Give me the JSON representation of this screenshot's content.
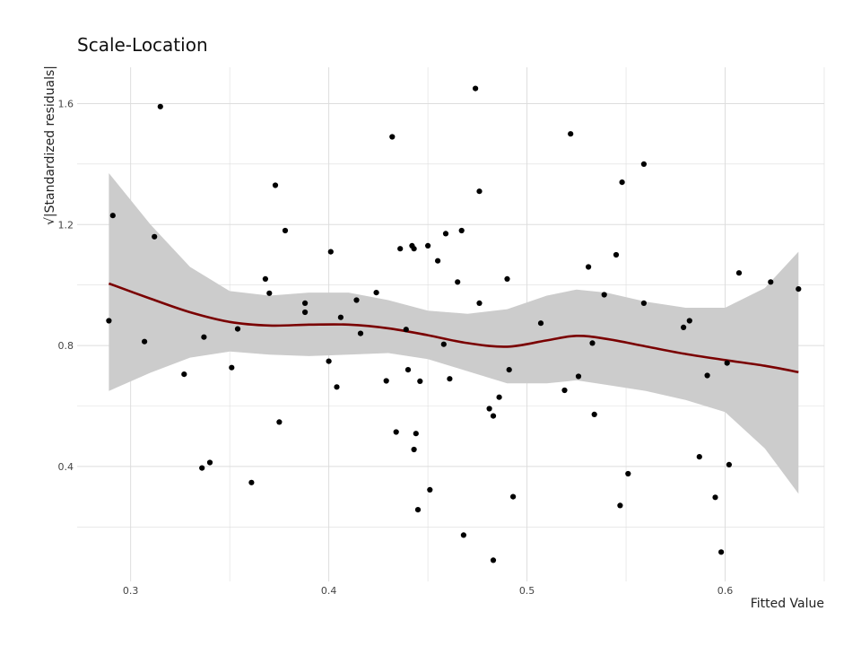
{
  "chart_data": {
    "type": "scatter",
    "title": "Scale-Location",
    "xlabel": "Fitted Value",
    "ylabel": "√|Standardized residuals|",
    "xlim": [
      0.273,
      0.65
    ],
    "ylim": [
      0.02,
      1.72
    ],
    "x_ticks": [
      0.3,
      0.4,
      0.5,
      0.6
    ],
    "x_tick_labels": [
      "0.3",
      "0.4",
      "0.5",
      "0.6"
    ],
    "y_ticks": [
      0.4,
      0.8,
      1.2,
      1.6
    ],
    "y_tick_labels": [
      "0.4",
      "0.8",
      "1.2",
      "1.6"
    ],
    "grid": true,
    "legend": "none",
    "colors": {
      "points": "#000000",
      "smooth_line": "#7a0000",
      "confidence_band": "#cccccc",
      "grid": "#dddddd"
    },
    "points": [
      [
        0.289,
        0.882
      ],
      [
        0.291,
        1.23
      ],
      [
        0.307,
        0.813
      ],
      [
        0.312,
        1.16
      ],
      [
        0.315,
        1.59
      ],
      [
        0.327,
        0.705
      ],
      [
        0.336,
        0.395
      ],
      [
        0.337,
        0.828
      ],
      [
        0.34,
        0.413
      ],
      [
        0.351,
        0.727
      ],
      [
        0.354,
        0.855
      ],
      [
        0.361,
        0.347
      ],
      [
        0.368,
        1.02
      ],
      [
        0.37,
        0.973
      ],
      [
        0.373,
        1.33
      ],
      [
        0.375,
        0.547
      ],
      [
        0.378,
        1.18
      ],
      [
        0.388,
        0.94
      ],
      [
        0.388,
        0.91
      ],
      [
        0.4,
        0.748
      ],
      [
        0.401,
        1.11
      ],
      [
        0.404,
        0.663
      ],
      [
        0.406,
        0.893
      ],
      [
        0.414,
        0.95
      ],
      [
        0.416,
        0.84
      ],
      [
        0.424,
        0.975
      ],
      [
        0.429,
        0.683
      ],
      [
        0.432,
        1.49
      ],
      [
        0.434,
        0.514
      ],
      [
        0.436,
        1.12
      ],
      [
        0.439,
        0.853
      ],
      [
        0.44,
        0.72
      ],
      [
        0.442,
        1.13
      ],
      [
        0.443,
        0.456
      ],
      [
        0.443,
        1.12
      ],
      [
        0.444,
        0.509
      ],
      [
        0.445,
        0.257
      ],
      [
        0.446,
        0.682
      ],
      [
        0.45,
        1.13
      ],
      [
        0.451,
        0.323
      ],
      [
        0.455,
        1.08
      ],
      [
        0.458,
        0.804
      ],
      [
        0.459,
        1.17
      ],
      [
        0.461,
        0.69
      ],
      [
        0.465,
        1.01
      ],
      [
        0.467,
        1.18
      ],
      [
        0.468,
        0.173
      ],
      [
        0.474,
        1.65
      ],
      [
        0.476,
        1.31
      ],
      [
        0.476,
        0.94
      ],
      [
        0.481,
        0.591
      ],
      [
        0.483,
        0.567
      ],
      [
        0.483,
        0.09
      ],
      [
        0.486,
        0.629
      ],
      [
        0.49,
        1.02
      ],
      [
        0.491,
        0.72
      ],
      [
        0.493,
        0.3
      ],
      [
        0.507,
        0.874
      ],
      [
        0.519,
        0.652
      ],
      [
        0.522,
        1.5
      ],
      [
        0.526,
        0.698
      ],
      [
        0.531,
        1.06
      ],
      [
        0.533,
        0.808
      ],
      [
        0.534,
        0.572
      ],
      [
        0.539,
        0.968
      ],
      [
        0.545,
        1.1
      ],
      [
        0.547,
        0.271
      ],
      [
        0.548,
        1.34
      ],
      [
        0.551,
        0.376
      ],
      [
        0.559,
        1.4
      ],
      [
        0.559,
        0.94
      ],
      [
        0.579,
        0.86
      ],
      [
        0.582,
        0.882
      ],
      [
        0.587,
        0.432
      ],
      [
        0.591,
        0.701
      ],
      [
        0.595,
        0.298
      ],
      [
        0.598,
        0.117
      ],
      [
        0.601,
        0.742
      ],
      [
        0.602,
        0.406
      ],
      [
        0.607,
        1.04
      ],
      [
        0.623,
        1.01
      ],
      [
        0.637,
        0.987
      ]
    ],
    "smooth_line": {
      "x": [
        0.289,
        0.31,
        0.33,
        0.35,
        0.37,
        0.39,
        0.41,
        0.43,
        0.45,
        0.47,
        0.49,
        0.51,
        0.525,
        0.54,
        0.56,
        0.58,
        0.6,
        0.62,
        0.637
      ],
      "y": [
        1.005,
        0.955,
        0.91,
        0.878,
        0.866,
        0.869,
        0.869,
        0.857,
        0.834,
        0.808,
        0.796,
        0.817,
        0.832,
        0.822,
        0.797,
        0.772,
        0.752,
        0.733,
        0.712
      ],
      "ci_lower": [
        0.65,
        0.71,
        0.76,
        0.78,
        0.77,
        0.765,
        0.77,
        0.775,
        0.755,
        0.715,
        0.675,
        0.675,
        0.685,
        0.67,
        0.65,
        0.62,
        0.58,
        0.46,
        0.31
      ],
      "ci_upper": [
        1.37,
        1.2,
        1.06,
        0.98,
        0.965,
        0.975,
        0.975,
        0.95,
        0.915,
        0.905,
        0.92,
        0.965,
        0.985,
        0.975,
        0.945,
        0.925,
        0.925,
        0.99,
        1.11
      ]
    }
  }
}
